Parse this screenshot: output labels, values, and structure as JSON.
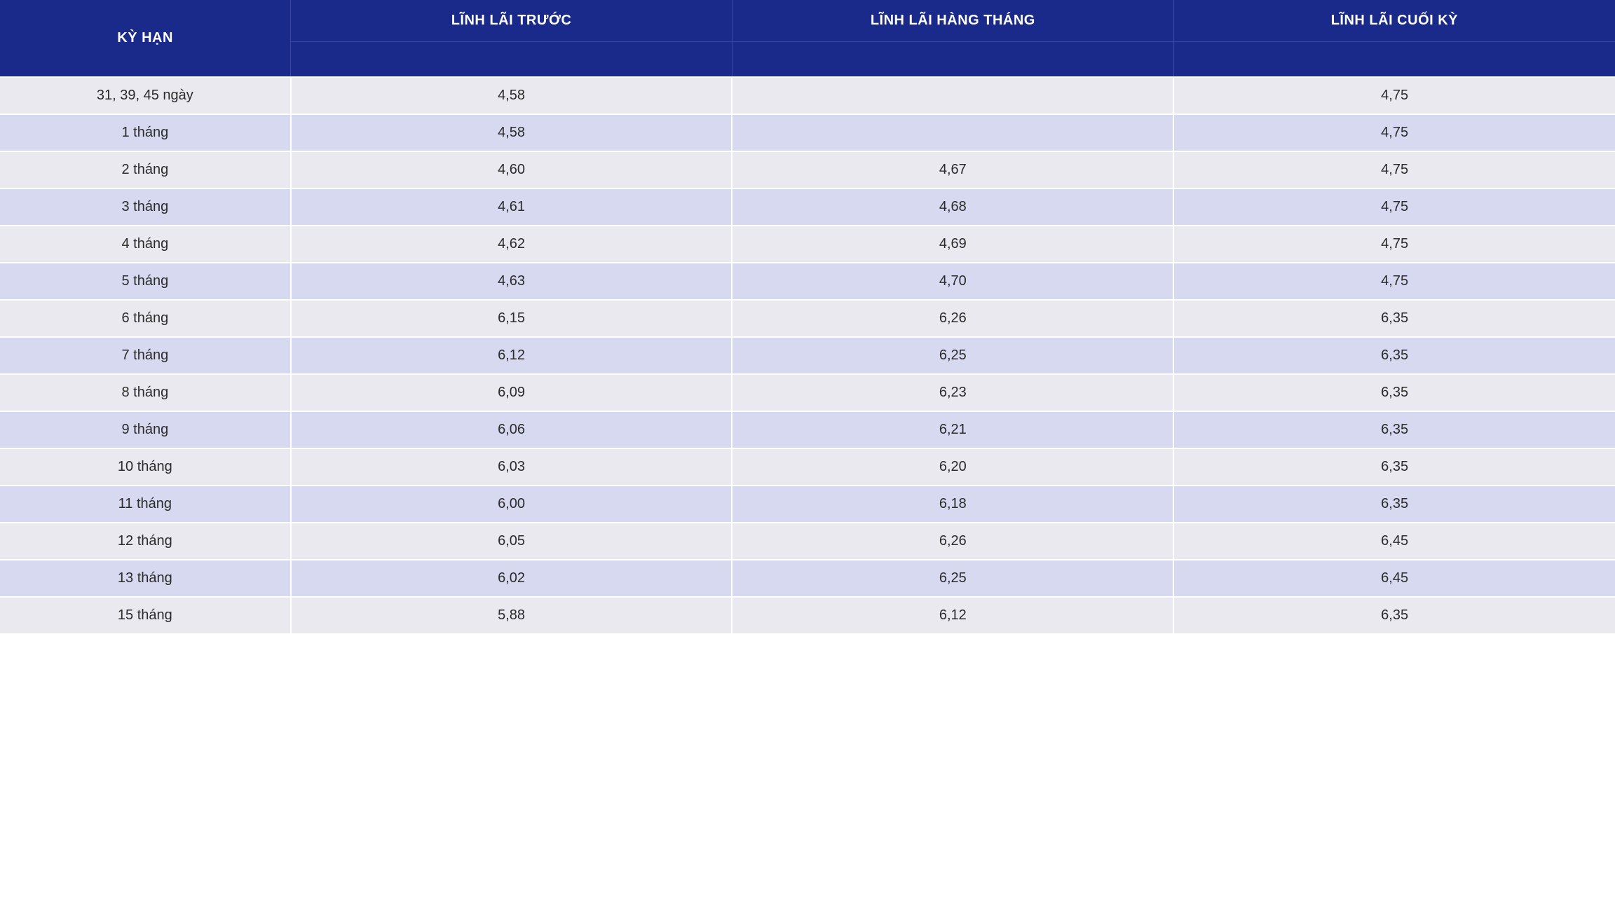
{
  "table": {
    "type": "table",
    "header_bg": "#1a2a8a",
    "header_border": "#3a47a5",
    "header_text_color": "#ffffff",
    "row_color_even": "#e9e9ef",
    "row_color_odd": "#d6d9ef",
    "cell_text_color": "#2b2b2b",
    "header_fontsize": 20,
    "cell_fontsize": 20,
    "columns": [
      {
        "label": "KỲ HẠN",
        "width_pct": 18
      },
      {
        "label": "LĨNH LÃI TRƯỚC",
        "width_pct": 27.333
      },
      {
        "label": "LĨNH LÃI HÀNG THÁNG",
        "width_pct": 27.333
      },
      {
        "label": "LĨNH LÃI CUỐI KỲ",
        "width_pct": 27.333
      }
    ],
    "rows": [
      {
        "term": "31, 39, 45 ngày",
        "before": "4,58",
        "monthly": "",
        "end": "4,75"
      },
      {
        "term": "1 tháng",
        "before": "4,58",
        "monthly": "",
        "end": "4,75"
      },
      {
        "term": "2 tháng",
        "before": "4,60",
        "monthly": "4,67",
        "end": "4,75"
      },
      {
        "term": "3 tháng",
        "before": "4,61",
        "monthly": "4,68",
        "end": "4,75"
      },
      {
        "term": "4 tháng",
        "before": "4,62",
        "monthly": "4,69",
        "end": "4,75"
      },
      {
        "term": "5 tháng",
        "before": "4,63",
        "monthly": "4,70",
        "end": "4,75"
      },
      {
        "term": "6 tháng",
        "before": "6,15",
        "monthly": "6,26",
        "end": "6,35"
      },
      {
        "term": "7 tháng",
        "before": "6,12",
        "monthly": "6,25",
        "end": "6,35"
      },
      {
        "term": "8 tháng",
        "before": "6,09",
        "monthly": "6,23",
        "end": "6,35"
      },
      {
        "term": "9 tháng",
        "before": "6,06",
        "monthly": "6,21",
        "end": "6,35"
      },
      {
        "term": "10 tháng",
        "before": "6,03",
        "monthly": "6,20",
        "end": "6,35"
      },
      {
        "term": "11 tháng",
        "before": "6,00",
        "monthly": "6,18",
        "end": "6,35"
      },
      {
        "term": "12 tháng",
        "before": "6,05",
        "monthly": "6,26",
        "end": "6,45"
      },
      {
        "term": "13 tháng",
        "before": "6,02",
        "monthly": "6,25",
        "end": "6,45"
      },
      {
        "term": "15 tháng",
        "before": "5,88",
        "monthly": "6,12",
        "end": "6,35"
      }
    ]
  }
}
